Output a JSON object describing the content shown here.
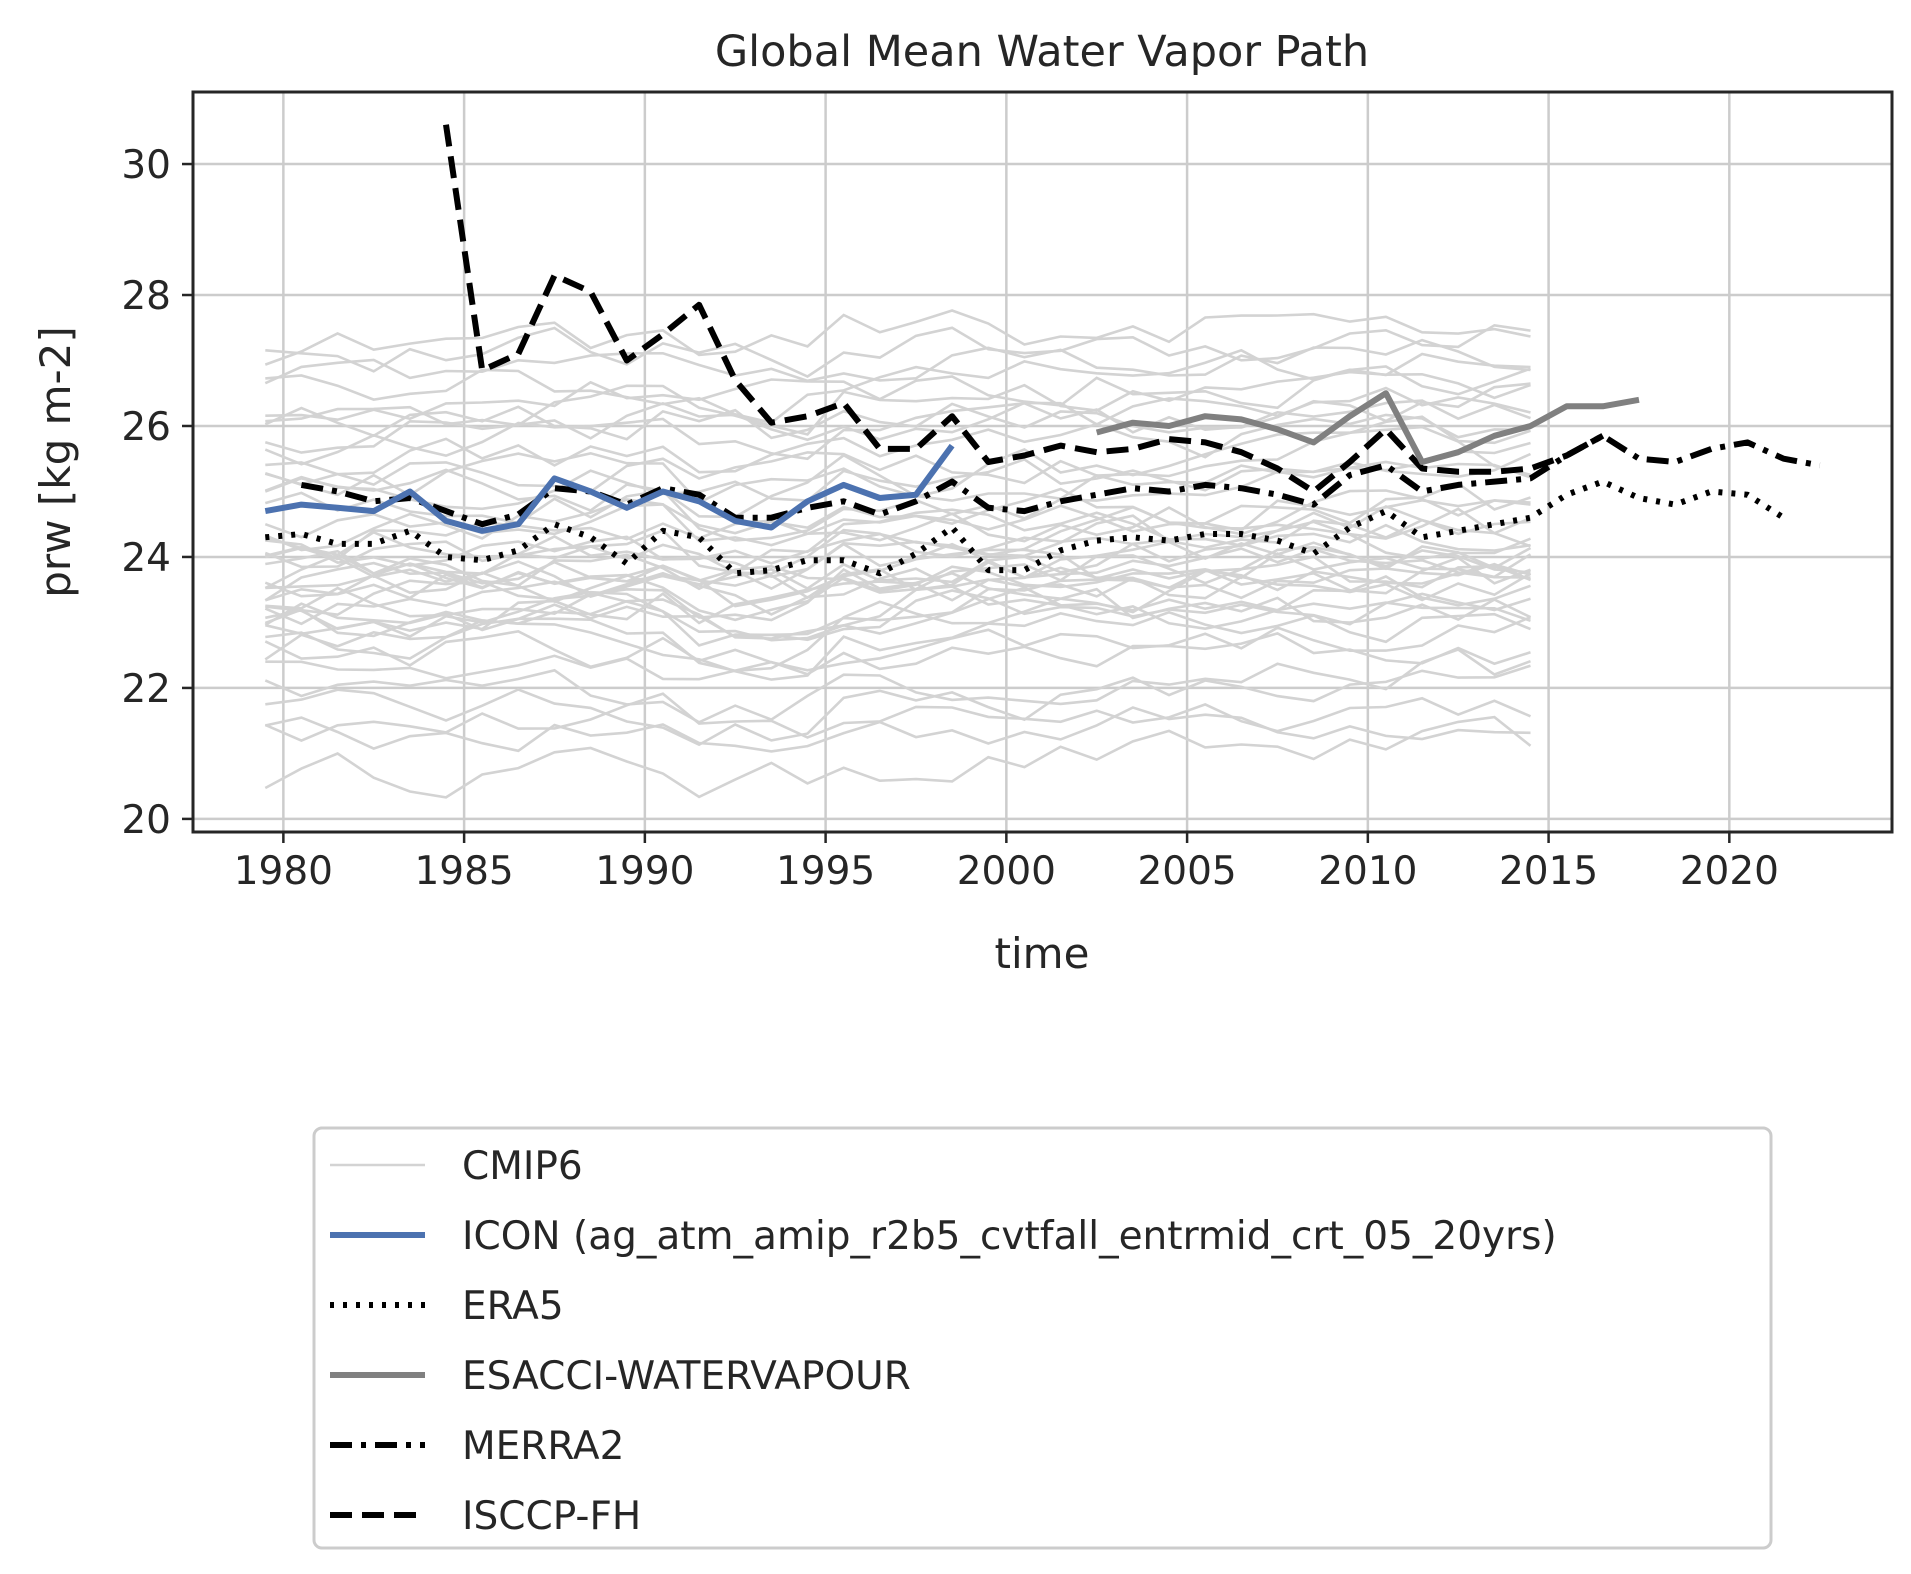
{
  "chart_data": {
    "type": "line",
    "title": "Global Mean Water Vapor Path",
    "xlabel": "time",
    "ylabel": "prw [kg m-2]",
    "xlim": [
      1977.5,
      2024.5
    ],
    "ylim": [
      19.8,
      31.1
    ],
    "xticks": [
      1980,
      1985,
      1990,
      1995,
      2000,
      2005,
      2010,
      2015,
      2020
    ],
    "yticks": [
      20,
      22,
      24,
      26,
      28,
      30
    ],
    "grid": true,
    "legend_position": "below plot, centered",
    "colors": {
      "CMIP6": "#d3d3d3",
      "ICON": "#4c72b0",
      "ERA5": "#000000",
      "ESACCI": "#808080",
      "MERRA2": "#000000",
      "ISCCP": "#000000"
    },
    "cmip6_band": {
      "name": "CMIP6",
      "x_start": 1979.5,
      "x_end": 2014.5,
      "member_count": 44,
      "baseline_levels": [
        20.7,
        21.2,
        21.4,
        21.6,
        21.9,
        22.2,
        22.5,
        22.7,
        22.8,
        22.9,
        23.0,
        23.1,
        23.2,
        23.2,
        23.3,
        23.3,
        23.4,
        23.5,
        23.6,
        23.7,
        23.8,
        23.9,
        24.0,
        24.1,
        24.2,
        24.4,
        24.5,
        24.7,
        24.9,
        25.1,
        25.3,
        25.5,
        25.7,
        25.9,
        26.0,
        26.2,
        26.4,
        26.6,
        26.8,
        27.0,
        27.2,
        24.3,
        23.6,
        25.0
      ]
    },
    "series": [
      {
        "name": "CMIP6",
        "style": "solid-thin",
        "x": [],
        "values": []
      },
      {
        "name": "ICON (ag_atm_amip_r2b5_cvtfall_entrmid_crt_05_20yrs)",
        "style": "solid",
        "x": [
          1979.5,
          1980.5,
          1981.5,
          1982.5,
          1983.5,
          1984.5,
          1985.5,
          1986.5,
          1987.5,
          1988.5,
          1989.5,
          1990.5,
          1991.5,
          1992.5,
          1993.5,
          1994.5,
          1995.5,
          1996.5,
          1997.5,
          1998.5
        ],
        "values": [
          24.7,
          24.8,
          24.75,
          24.7,
          25.0,
          24.55,
          24.4,
          24.5,
          25.2,
          25.0,
          24.75,
          25.0,
          24.85,
          24.55,
          24.45,
          24.85,
          25.1,
          24.9,
          24.95,
          25.7
        ]
      },
      {
        "name": "ERA5",
        "style": "dotted",
        "x": [
          1979.5,
          1980.5,
          1981.5,
          1982.5,
          1983.5,
          1984.5,
          1985.5,
          1986.5,
          1987.5,
          1988.5,
          1989.5,
          1990.5,
          1991.5,
          1992.5,
          1993.5,
          1994.5,
          1995.5,
          1996.5,
          1997.5,
          1998.5,
          1999.5,
          2000.5,
          2001.5,
          2002.5,
          2003.5,
          2004.5,
          2005.5,
          2006.5,
          2007.5,
          2008.5,
          2009.5,
          2010.5,
          2011.5,
          2012.5,
          2013.5,
          2014.5,
          2015.5,
          2016.5,
          2017.5,
          2018.5,
          2019.5,
          2020.5,
          2021.5
        ],
        "values": [
          24.3,
          24.35,
          24.2,
          24.2,
          24.4,
          24.0,
          23.95,
          24.1,
          24.5,
          24.3,
          23.9,
          24.4,
          24.3,
          23.75,
          23.8,
          23.95,
          23.95,
          23.75,
          24.05,
          24.45,
          23.8,
          23.8,
          24.1,
          24.25,
          24.3,
          24.25,
          24.35,
          24.35,
          24.25,
          24.05,
          24.45,
          24.7,
          24.3,
          24.4,
          24.5,
          24.6,
          24.95,
          25.15,
          24.9,
          24.8,
          25.0,
          24.95,
          24.6
        ]
      },
      {
        "name": "ESACCI-WATERVAPOUR",
        "style": "solid",
        "x": [
          2002.5,
          2003.5,
          2004.5,
          2005.5,
          2006.5,
          2007.5,
          2008.5,
          2009.5,
          2010.5,
          2011.5,
          2012.5,
          2013.5,
          2014.5,
          2015.5,
          2016.5,
          2017.5
        ],
        "values": [
          25.9,
          26.05,
          26.0,
          26.15,
          26.1,
          25.95,
          25.75,
          26.15,
          26.5,
          25.45,
          25.6,
          25.85,
          26.0,
          26.3,
          26.3,
          26.4
        ]
      },
      {
        "name": "MERRA2",
        "style": "dashdot",
        "x": [
          1980.5,
          1981.5,
          1982.5,
          1983.5,
          1984.5,
          1985.5,
          1986.5,
          1987.5,
          1988.5,
          1989.5,
          1990.5,
          1991.5,
          1992.5,
          1993.5,
          1994.5,
          1995.5,
          1996.5,
          1997.5,
          1998.5,
          1999.5,
          2000.5,
          2001.5,
          2002.5,
          2003.5,
          2004.5,
          2005.5,
          2006.5,
          2007.5,
          2008.5,
          2009.5,
          2010.5,
          2011.5,
          2012.5,
          2013.5,
          2014.5,
          2015.5,
          2016.5,
          2017.5,
          2018.5,
          2019.5,
          2020.5,
          2021.5,
          2022.5
        ],
        "values": [
          25.1,
          25.0,
          24.85,
          24.9,
          24.7,
          24.5,
          24.65,
          25.05,
          25.0,
          24.8,
          25.05,
          24.95,
          24.6,
          24.6,
          24.75,
          24.85,
          24.65,
          24.85,
          25.15,
          24.75,
          24.7,
          24.85,
          24.95,
          25.05,
          25.0,
          25.1,
          25.05,
          24.95,
          24.8,
          25.25,
          25.4,
          25.0,
          25.1,
          25.15,
          25.2,
          25.55,
          25.85,
          25.5,
          25.45,
          25.65,
          25.75,
          25.5,
          25.4
        ]
      },
      {
        "name": "ISCCP-FH",
        "style": "dashed",
        "x": [
          1984.5,
          1985.5,
          1986.5,
          1987.5,
          1988.5,
          1989.5,
          1990.5,
          1991.5,
          1992.5,
          1993.5,
          1994.5,
          1995.5,
          1996.5,
          1997.5,
          1998.5,
          1999.5,
          2000.5,
          2001.5,
          2002.5,
          2003.5,
          2004.5,
          2005.5,
          2006.5,
          2007.5,
          2008.5,
          2009.5,
          2010.5,
          2011.5,
          2012.5,
          2013.5,
          2014.5,
          2015.5,
          2016.5
        ],
        "values": [
          30.6,
          26.85,
          27.1,
          28.3,
          28.05,
          27.0,
          27.4,
          27.85,
          26.7,
          26.05,
          26.15,
          26.35,
          25.65,
          25.65,
          26.15,
          25.45,
          25.55,
          25.7,
          25.6,
          25.65,
          25.8,
          25.75,
          25.6,
          25.35,
          25.0,
          25.45,
          25.95,
          25.35,
          25.3,
          25.3,
          25.35,
          25.55,
          25.85
        ]
      }
    ]
  }
}
